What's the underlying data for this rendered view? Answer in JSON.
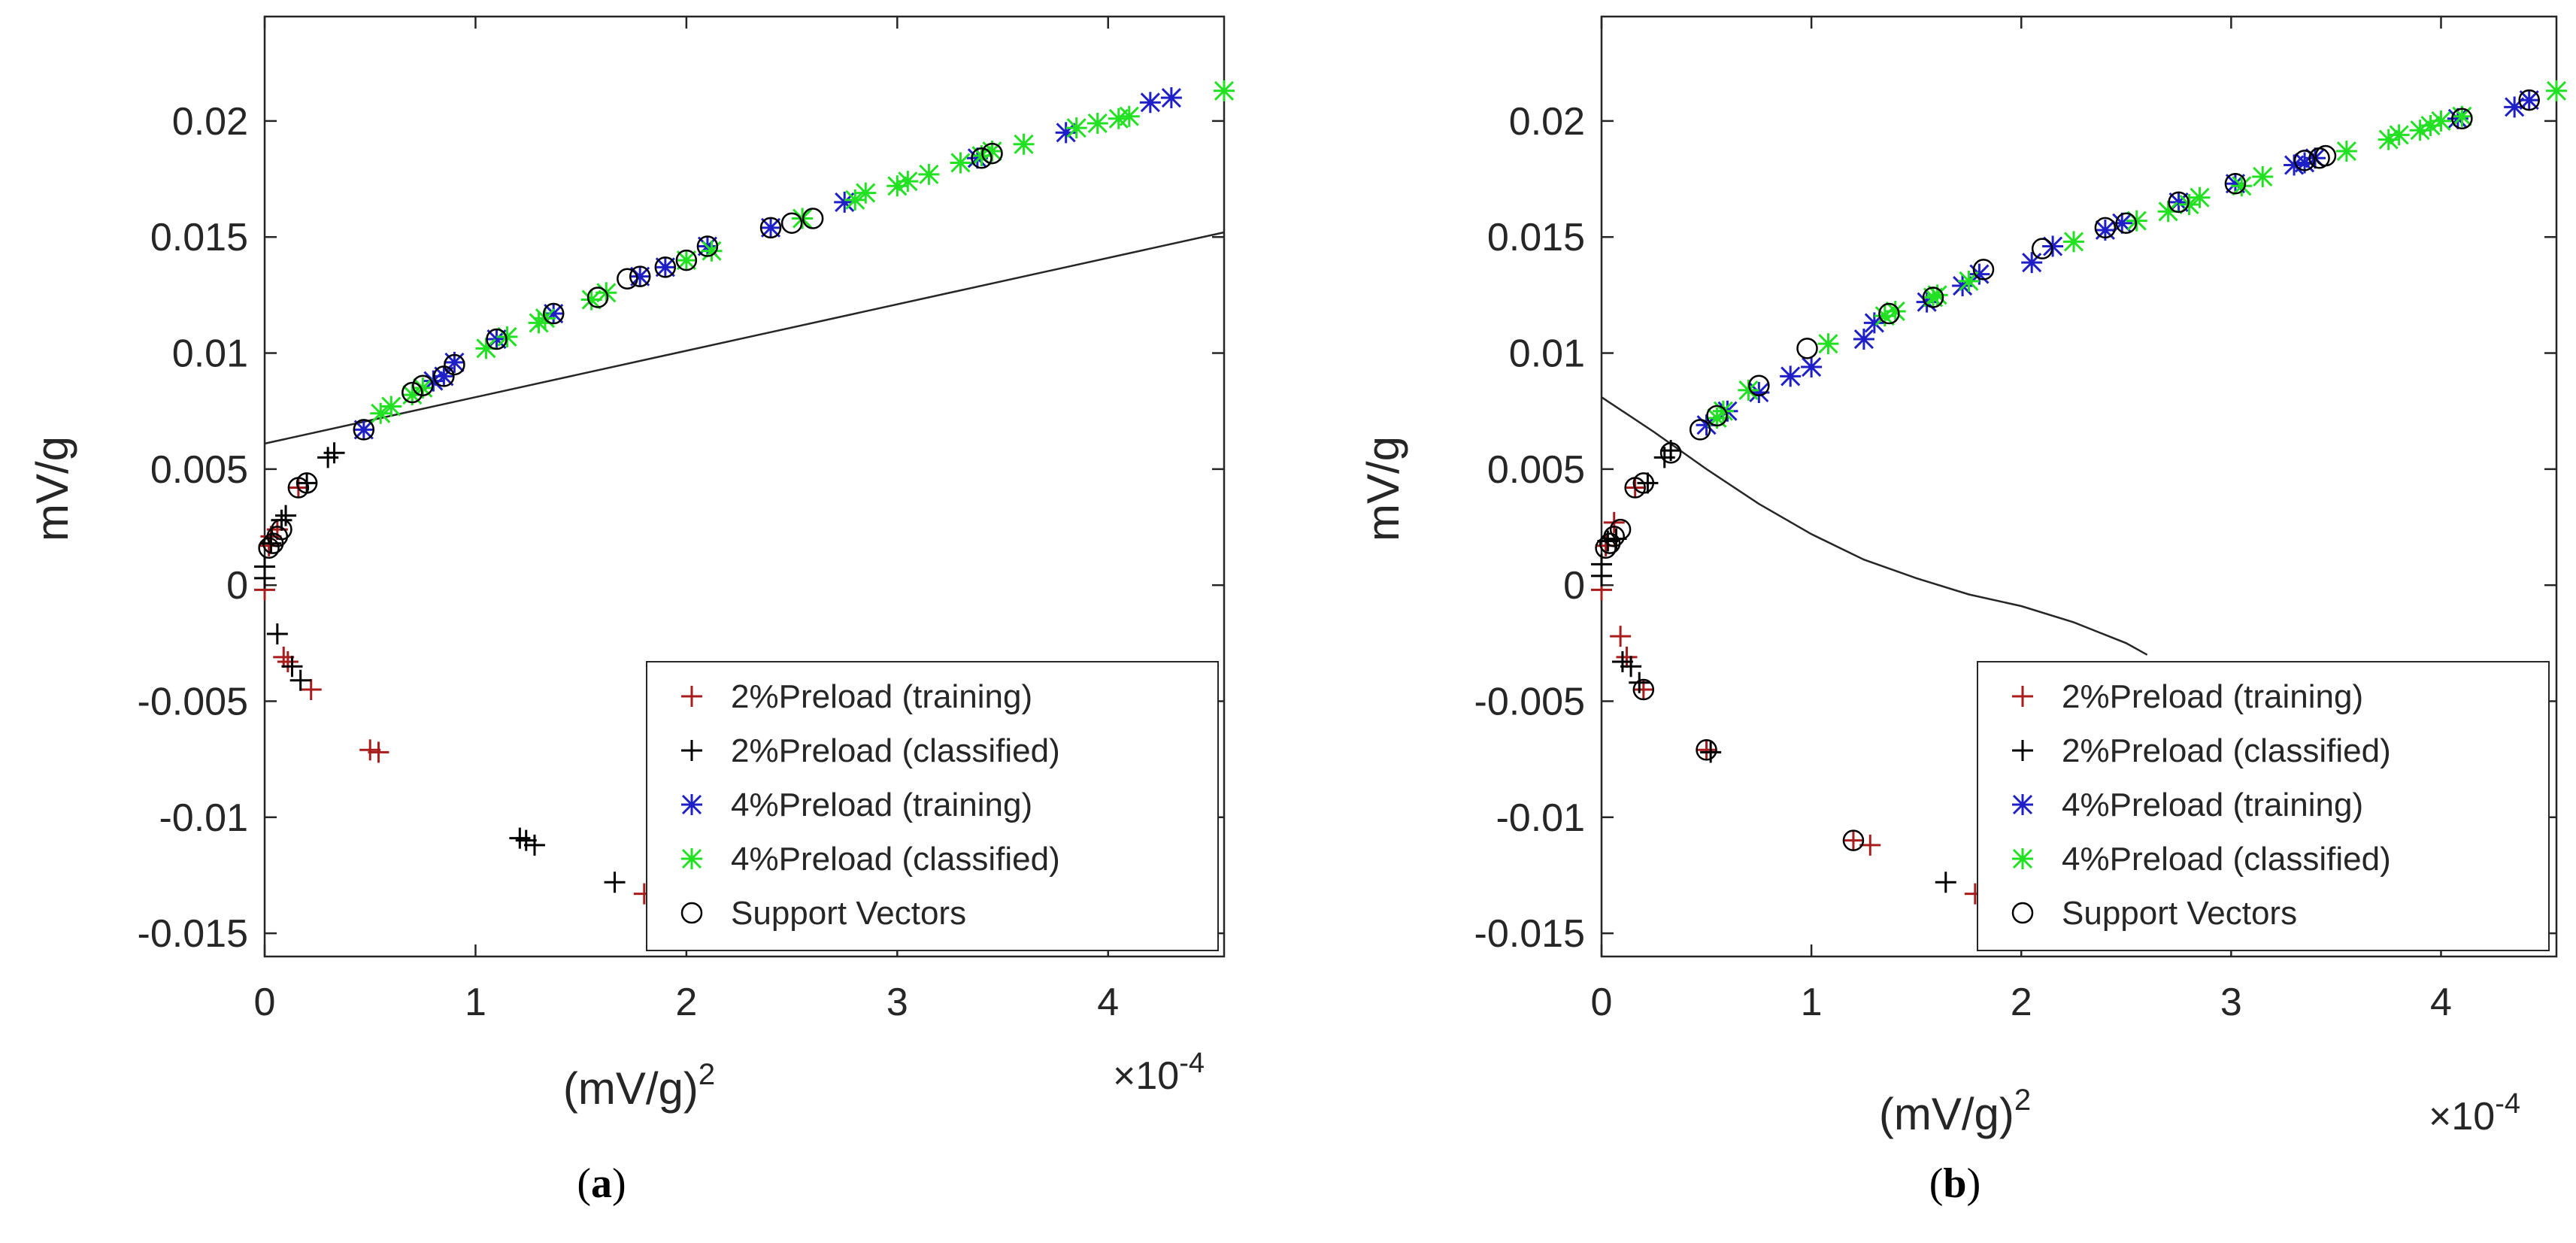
{
  "chart_data": [
    {
      "type": "scatter",
      "panel_caption_open": "(",
      "panel_caption_letter": "a",
      "panel_caption_close": ")",
      "xlabel": "(mV/g)",
      "xlabel_superscript": "2",
      "ylabel": "mV/g",
      "x_exponent_label": "×10",
      "x_exponent_power": "-4",
      "xlim": [
        0,
        4.55
      ],
      "ylim": [
        -0.016,
        0.0245
      ],
      "xticks": [
        0,
        1,
        2,
        3,
        4
      ],
      "xtick_labels": [
        "0",
        "1",
        "2",
        "3",
        "4"
      ],
      "yticks": [
        -0.015,
        -0.01,
        -0.005,
        0,
        0.005,
        0.01,
        0.015,
        0.02
      ],
      "ytick_labels": [
        "-0.015",
        "-0.01",
        "-0.005",
        "0",
        "0.005",
        "0.01",
        "0.015",
        "0.02"
      ],
      "grid": false,
      "legend_position": "bottom-right",
      "legend": [
        {
          "label": "2%Preload (training)",
          "marker": "plus",
          "color": "#a81c1c"
        },
        {
          "label": "2%Preload (classified)",
          "marker": "plus",
          "color": "#000000"
        },
        {
          "label": "4%Preload (training)",
          "marker": "star",
          "color": "#1f1fc8"
        },
        {
          "label": "4%Preload (classified)",
          "marker": "star",
          "color": "#22e022"
        },
        {
          "label": "Support Vectors",
          "marker": "circle",
          "color": "#000000"
        }
      ],
      "boundary": {
        "name": "decision-boundary",
        "x": [
          0,
          4.55
        ],
        "y": [
          0.0061,
          0.0152
        ]
      },
      "series": [
        {
          "name": "2%Preload (training)",
          "marker": "plus",
          "color": "#a81c1c",
          "x": [
            0.0,
            0.02,
            0.03,
            0.06,
            0.09,
            0.11,
            0.16,
            0.22,
            0.5,
            0.54,
            1.8
          ],
          "y": [
            -0.0002,
            0.0017,
            0.0021,
            0.0024,
            -0.0031,
            -0.0033,
            0.0042,
            -0.0045,
            -0.0071,
            -0.0072,
            -0.0133
          ]
        },
        {
          "name": "2%Preload (classified)",
          "marker": "plus",
          "color": "#000000",
          "x": [
            0.0,
            0.0,
            0.03,
            0.06,
            0.08,
            0.1,
            0.13,
            0.17,
            0.2,
            0.3,
            0.33,
            1.21,
            1.24,
            1.28,
            1.66
          ],
          "y": [
            0.0003,
            0.0008,
            0.0018,
            -0.0021,
            0.0028,
            0.003,
            -0.0035,
            -0.0041,
            0.0044,
            0.0055,
            0.0057,
            -0.0109,
            -0.011,
            -0.0112,
            -0.0128
          ]
        },
        {
          "name": "4%Preload (training)",
          "marker": "star",
          "color": "#1f1fc8",
          "x": [
            0.47,
            0.8,
            0.85,
            0.9,
            1.1,
            1.37,
            1.78,
            1.9,
            2.1,
            2.4,
            2.75,
            3.38,
            3.8,
            4.2,
            4.3
          ],
          "y": [
            0.0067,
            0.0088,
            0.009,
            0.0096,
            0.0106,
            0.0117,
            0.0133,
            0.0137,
            0.0146,
            0.0154,
            0.0165,
            0.0184,
            0.0195,
            0.0208,
            0.021
          ]
        },
        {
          "name": "4%Preload (classified)",
          "marker": "star",
          "color": "#22e022",
          "x": [
            0.55,
            0.6,
            0.7,
            0.75,
            1.05,
            1.15,
            1.3,
            1.33,
            1.55,
            1.62,
            2.0,
            2.12,
            2.55,
            2.8,
            2.85,
            3.0,
            3.05,
            3.15,
            3.3,
            3.4,
            3.45,
            3.6,
            3.85,
            3.95,
            4.05,
            4.1,
            4.55
          ],
          "y": [
            0.0074,
            0.0077,
            0.0082,
            0.0085,
            0.0102,
            0.0107,
            0.0113,
            0.0115,
            0.0123,
            0.0126,
            0.014,
            0.0144,
            0.0158,
            0.0166,
            0.0169,
            0.0172,
            0.0174,
            0.0177,
            0.0182,
            0.0185,
            0.0187,
            0.019,
            0.0197,
            0.0199,
            0.0201,
            0.0202,
            0.0213
          ]
        },
        {
          "name": "Support Vectors",
          "marker": "circle",
          "color": "#000000",
          "x": [
            0.02,
            0.04,
            0.06,
            0.08,
            0.16,
            0.2,
            0.47,
            0.7,
            0.75,
            0.85,
            0.9,
            1.1,
            1.37,
            1.58,
            1.72,
            1.78,
            1.9,
            2.0,
            2.1,
            2.4,
            2.5,
            2.6,
            3.4,
            3.45
          ],
          "y": [
            0.0016,
            0.0018,
            0.0021,
            0.0024,
            0.0042,
            0.0044,
            0.0067,
            0.0083,
            0.0086,
            0.009,
            0.0095,
            0.0106,
            0.0117,
            0.0124,
            0.0132,
            0.0133,
            0.0137,
            0.014,
            0.0146,
            0.0154,
            0.0156,
            0.0158,
            0.0184,
            0.0186
          ]
        }
      ]
    },
    {
      "type": "scatter",
      "panel_caption_open": "(",
      "panel_caption_letter": "b",
      "panel_caption_close": ")",
      "xlabel": "(mV/g)",
      "xlabel_superscript": "2",
      "ylabel": "mV/g",
      "x_exponent_label": "×10",
      "x_exponent_power": "-4",
      "xlim": [
        0,
        4.55
      ],
      "ylim": [
        -0.016,
        0.0245
      ],
      "xticks": [
        0,
        1,
        2,
        3,
        4
      ],
      "xtick_labels": [
        "0",
        "1",
        "2",
        "3",
        "4"
      ],
      "yticks": [
        -0.015,
        -0.01,
        -0.005,
        0,
        0.005,
        0.01,
        0.015,
        0.02
      ],
      "ytick_labels": [
        "-0.015",
        "-0.01",
        "-0.005",
        "0",
        "0.005",
        "0.01",
        "0.015",
        "0.02"
      ],
      "grid": false,
      "legend_position": "bottom-right",
      "legend": [
        {
          "label": "2%Preload (training)",
          "marker": "plus",
          "color": "#a81c1c"
        },
        {
          "label": "2%Preload (classified)",
          "marker": "plus",
          "color": "#000000"
        },
        {
          "label": "4%Preload (training)",
          "marker": "star",
          "color": "#1f1fc8"
        },
        {
          "label": "4%Preload (classified)",
          "marker": "star",
          "color": "#22e022"
        },
        {
          "label": "Support Vectors",
          "marker": "circle",
          "color": "#000000"
        }
      ],
      "boundary": {
        "name": "decision-boundary",
        "x": [
          0,
          0.25,
          0.5,
          0.75,
          1.0,
          1.25,
          1.5,
          1.75,
          2.0,
          2.25,
          2.5,
          2.6
        ],
        "y": [
          0.0081,
          0.0066,
          0.005,
          0.0035,
          0.0022,
          0.0011,
          0.0003,
          -0.0004,
          -0.0009,
          -0.0016,
          -0.0025,
          -0.003
        ]
      },
      "series": [
        {
          "name": "2%Preload (training)",
          "marker": "plus",
          "color": "#a81c1c",
          "x": [
            0.0,
            0.02,
            0.06,
            0.09,
            0.12,
            0.16,
            0.2,
            0.5,
            1.2,
            1.28,
            1.78
          ],
          "y": [
            -0.0002,
            0.0017,
            0.0027,
            -0.0022,
            -0.0031,
            0.0042,
            -0.0045,
            -0.0071,
            -0.011,
            -0.0112,
            -0.0133
          ]
        },
        {
          "name": "2%Preload (classified)",
          "marker": "plus",
          "color": "#000000",
          "x": [
            0.0,
            0.0,
            0.03,
            0.07,
            0.1,
            0.14,
            0.18,
            0.22,
            0.3,
            0.33,
            0.52,
            1.64
          ],
          "y": [
            0.0004,
            0.0009,
            0.0019,
            0.002,
            -0.0033,
            -0.0035,
            -0.0042,
            0.0044,
            0.0055,
            0.0058,
            -0.0072,
            -0.0128
          ]
        },
        {
          "name": "4%Preload (training)",
          "marker": "star",
          "color": "#1f1fc8",
          "x": [
            0.5,
            0.6,
            0.75,
            0.9,
            1.0,
            1.25,
            1.3,
            1.55,
            1.72,
            1.8,
            2.05,
            2.15,
            2.4,
            2.48,
            2.75,
            3.02,
            3.3,
            3.35,
            3.4,
            4.08,
            4.35,
            4.42
          ],
          "y": [
            0.0069,
            0.0075,
            0.0083,
            0.009,
            0.0094,
            0.0106,
            0.0113,
            0.0122,
            0.0129,
            0.0134,
            0.0139,
            0.0146,
            0.0153,
            0.0156,
            0.0165,
            0.0173,
            0.0181,
            0.0182,
            0.0184,
            0.0201,
            0.0206,
            0.0209
          ]
        },
        {
          "name": "4%Preload (classified)",
          "marker": "star",
          "color": "#22e022",
          "x": [
            0.55,
            0.58,
            0.7,
            1.08,
            1.35,
            1.4,
            1.58,
            1.6,
            1.75,
            2.25,
            2.55,
            2.7,
            2.8,
            2.85,
            3.05,
            3.15,
            3.55,
            3.75,
            3.8,
            3.9,
            3.95,
            4.0,
            4.1,
            4.55
          ],
          "y": [
            0.0072,
            0.0075,
            0.0084,
            0.0104,
            0.0116,
            0.0118,
            0.0124,
            0.0125,
            0.0131,
            0.0148,
            0.0157,
            0.0161,
            0.0164,
            0.0167,
            0.0172,
            0.0176,
            0.0187,
            0.0192,
            0.0194,
            0.0196,
            0.0198,
            0.02,
            0.0202,
            0.0213
          ]
        },
        {
          "name": "Support Vectors",
          "marker": "circle",
          "color": "#000000",
          "x": [
            0.02,
            0.04,
            0.06,
            0.09,
            0.16,
            0.2,
            0.33,
            0.47,
            0.55,
            0.75,
            0.98,
            1.37,
            1.58,
            1.82,
            2.1,
            2.4,
            2.5,
            2.75,
            3.02,
            3.35,
            3.42,
            3.45,
            4.1,
            4.42,
            1.2,
            0.5,
            0.2
          ],
          "y": [
            0.0016,
            0.0018,
            0.0021,
            0.0024,
            0.0042,
            0.0044,
            0.0057,
            0.0067,
            0.0073,
            0.0086,
            0.0102,
            0.0117,
            0.0124,
            0.0136,
            0.0145,
            0.0154,
            0.0156,
            0.0165,
            0.0173,
            0.0183,
            0.0184,
            0.0185,
            0.0201,
            0.0209,
            -0.011,
            -0.0071,
            -0.0045
          ]
        }
      ]
    }
  ]
}
